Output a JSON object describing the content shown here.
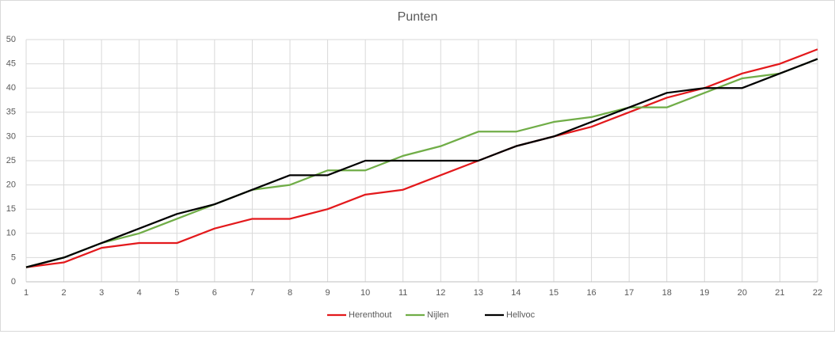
{
  "chart_data": {
    "type": "line",
    "title": "Punten",
    "x": [
      1,
      2,
      3,
      4,
      5,
      6,
      7,
      8,
      9,
      10,
      11,
      12,
      13,
      14,
      15,
      16,
      17,
      18,
      19,
      20,
      21,
      22
    ],
    "series": [
      {
        "name": "Herenthout",
        "color": "#e3191c",
        "values": [
          3,
          4,
          7,
          8,
          8,
          11,
          13,
          13,
          15,
          18,
          19,
          22,
          25,
          28,
          30,
          32,
          35,
          38,
          40,
          43,
          45,
          48
        ]
      },
      {
        "name": "Nijlen",
        "color": "#70ad47",
        "values": [
          3,
          5,
          8,
          10,
          13,
          16,
          19,
          20,
          23,
          23,
          26,
          28,
          31,
          31,
          33,
          34,
          36,
          36,
          39,
          42,
          43,
          46
        ]
      },
      {
        "name": "Hellvoc",
        "color": "#000000",
        "values": [
          3,
          5,
          8,
          11,
          14,
          16,
          19,
          22,
          22,
          25,
          25,
          25,
          25,
          28,
          30,
          33,
          36,
          39,
          40,
          40,
          43,
          46
        ]
      }
    ],
    "xlim": [
      1,
      22
    ],
    "xticks": [
      1,
      2,
      3,
      4,
      5,
      6,
      7,
      8,
      9,
      10,
      11,
      12,
      13,
      14,
      15,
      16,
      17,
      18,
      19,
      20,
      21,
      22
    ],
    "ylim": [
      0,
      50
    ],
    "yticks": [
      0,
      5,
      10,
      15,
      20,
      25,
      30,
      35,
      40,
      45,
      50
    ],
    "grid": true,
    "legend": "bottom"
  }
}
